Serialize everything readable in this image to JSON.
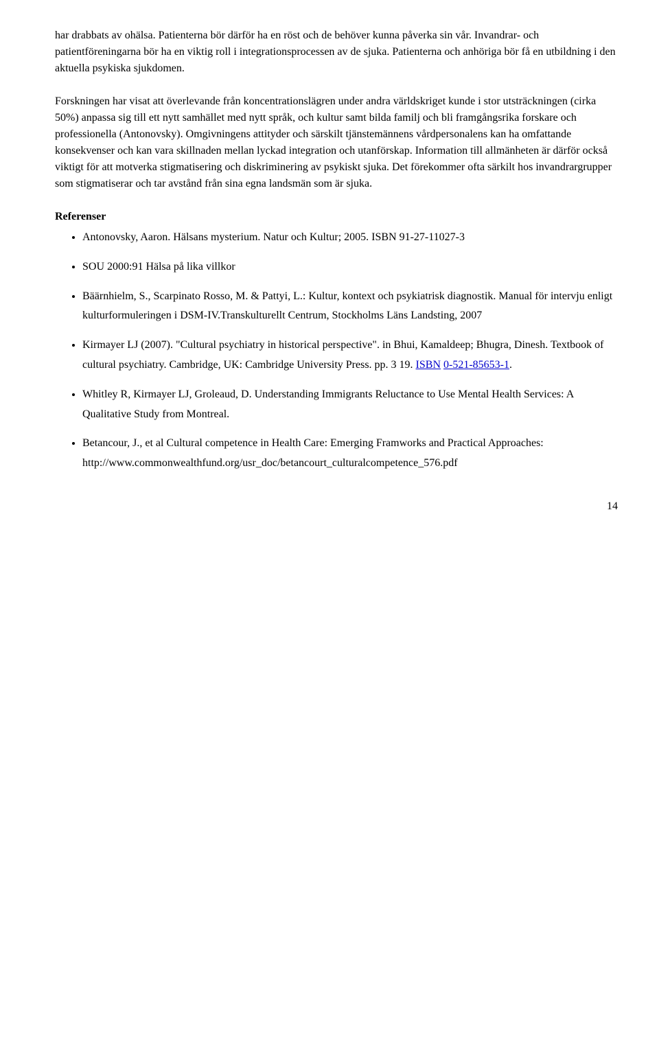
{
  "paragraphs": {
    "p1": "har drabbats av ohälsa. Patienterna bör därför ha en röst och de behöver kunna påverka sin vår. Invandrar- och patientföreningarna bör ha en viktig roll i integrationsprocessen av de sjuka. Patienterna och anhöriga bör få en utbildning i den aktuella psykiska sjukdomen.",
    "p2": "Forskningen har visat att överlevande från koncentrationslägren under andra världskriget kunde i stor utsträckningen (cirka 50%) anpassa sig till ett nytt samhället med nytt språk, och kultur samt bilda familj och bli framgångsrika forskare och professionella (Antonovsky). Omgivningens attityder och särskilt tjänstemännens vårdpersonalens kan ha omfattande konsekvenser och kan vara skillnaden mellan lyckad integration och utanförskap. Information till allmänheten är därför också viktigt för att motverka stigmatisering och diskriminering av psykiskt sjuka. Det förekommer ofta särkilt hos invandrargrupper som stigmatiserar och tar avstånd från sina egna landsmän som är sjuka."
  },
  "references_heading": "Referenser",
  "references": [
    {
      "html": "Antonovsky, Aaron. Hälsans mysterium. Natur och Kultur; 2005. ISBN 91-27-11027-3"
    },
    {
      "html": "SOU 2000:91 Hälsa på lika villkor"
    },
    {
      "html": "Bäärnhielm, S., Scarpinato Rosso, M. & Pattyi, L.: Kultur, kontext och psykiatrisk diagnostik. Manual för intervju enligt kulturformuleringen i DSM-IV.Transkulturellt Centrum, Stockholms Läns Landsting, 2007"
    },
    {
      "html": "Kirmayer LJ (2007). \"Cultural psychiatry in historical perspective\". in Bhui, Kamaldeep; Bhugra, Dinesh. Textbook of cultural psychiatry. Cambridge, UK: Cambridge University Press. pp. 3 19. <a class=\"isbn-link\" href=\"#\">ISBN</a> <a class=\"isbn-link\" href=\"#\">0-521-85653-1</a>."
    },
    {
      "html": "Whitley R, Kirmayer LJ, Groleaud, D. Understanding Immigrants Reluctance to Use Mental Health Services: A Qualitative Study from Montreal."
    },
    {
      "html": "Betancour, J., et al  Cultural competence in Health Care: Emerging Framworks and Practical Approaches: http://www.commonwealthfund.org/usr_doc/betancourt_culturalcompetence_576.pdf"
    }
  ],
  "page_number": "14"
}
